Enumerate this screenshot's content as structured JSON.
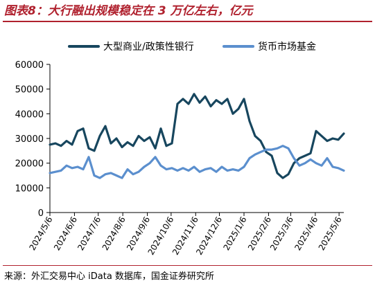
{
  "title": "图表8：大行融出规模稳定在 3 万亿左右，亿元",
  "source": "来源：外汇交易中心 iData 数据库，国金证券研究所",
  "colors": {
    "accent": "#b0212e",
    "series_dark": "#17465e",
    "series_light": "#5b8fce"
  },
  "chart_data": {
    "type": "line",
    "title": "",
    "xlabel": "",
    "ylabel": "",
    "ylim": [
      0,
      60000
    ],
    "yticks": [
      0,
      10000,
      20000,
      30000,
      40000,
      50000,
      60000
    ],
    "xticks": [
      "2024/5/6",
      "2024/6/6",
      "2024/7/6",
      "2024/8/6",
      "2024/9/6",
      "2024/10/6",
      "2024/11/6",
      "2024/12/6",
      "2025/1/6",
      "2025/2/6",
      "2025/3/6",
      "2025/4/6",
      "2025/5/6"
    ],
    "grid": false,
    "legend_position": "top",
    "x": [
      "2024/5/6",
      "2024/5/13",
      "2024/5/20",
      "2024/5/27",
      "2024/6/3",
      "2024/6/10",
      "2024/6/17",
      "2024/6/24",
      "2024/7/1",
      "2024/7/8",
      "2024/7/15",
      "2024/7/22",
      "2024/7/29",
      "2024/8/5",
      "2024/8/12",
      "2024/8/19",
      "2024/8/26",
      "2024/9/2",
      "2024/9/9",
      "2024/9/16",
      "2024/9/23",
      "2024/9/30",
      "2024/10/7",
      "2024/10/14",
      "2024/10/21",
      "2024/10/28",
      "2024/11/4",
      "2024/11/11",
      "2024/11/18",
      "2024/11/25",
      "2024/12/2",
      "2024/12/9",
      "2024/12/16",
      "2024/12/23",
      "2024/12/30",
      "2025/1/6",
      "2025/1/13",
      "2025/1/20",
      "2025/1/27",
      "2025/2/3",
      "2025/2/10",
      "2025/2/17",
      "2025/2/24",
      "2025/3/3",
      "2025/3/10",
      "2025/3/17",
      "2025/3/24",
      "2025/3/31",
      "2025/4/7",
      "2025/4/14",
      "2025/4/21",
      "2025/4/28",
      "2025/5/5",
      "2025/5/12"
    ],
    "series": [
      {
        "name": "大型商业/政策性银行",
        "color": "#17465e",
        "values": [
          27500,
          28000,
          27000,
          29000,
          27500,
          33000,
          34000,
          26000,
          25000,
          31000,
          35000,
          28000,
          30000,
          26500,
          28500,
          27000,
          31000,
          29000,
          30500,
          26000,
          34000,
          27000,
          28000,
          44000,
          46000,
          44000,
          48000,
          44500,
          47000,
          43000,
          45500,
          44000,
          46000,
          40000,
          42000,
          46000,
          37000,
          31000,
          29000,
          24500,
          23000,
          16000,
          14000,
          15500,
          20000,
          22000,
          23000,
          24000,
          33000,
          31000,
          29000,
          30000,
          29500,
          32000
        ]
      },
      {
        "name": "货币市场基金",
        "color": "#5b8fce",
        "values": [
          16000,
          16500,
          17000,
          19000,
          18000,
          18500,
          17500,
          22500,
          15000,
          14000,
          15500,
          16000,
          15000,
          14000,
          17500,
          15500,
          16500,
          18500,
          20000,
          22500,
          19000,
          17500,
          18000,
          17000,
          18000,
          17000,
          18500,
          16500,
          17500,
          18000,
          16500,
          18500,
          17000,
          17500,
          17000,
          18500,
          22000,
          23500,
          24500,
          25500,
          25500,
          26000,
          27000,
          26000,
          22000,
          19000,
          20000,
          21500,
          20000,
          19000,
          22000,
          18500,
          18000,
          17000
        ]
      }
    ]
  }
}
